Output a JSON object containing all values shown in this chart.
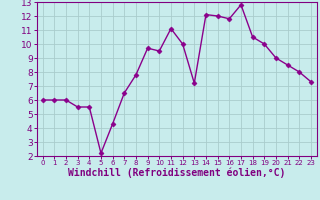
{
  "x": [
    0,
    1,
    2,
    3,
    4,
    5,
    6,
    7,
    8,
    9,
    10,
    11,
    12,
    13,
    14,
    15,
    16,
    17,
    18,
    19,
    20,
    21,
    22,
    23
  ],
  "y": [
    6,
    6,
    6,
    5.5,
    5.5,
    2.2,
    4.3,
    6.5,
    7.8,
    9.7,
    9.5,
    11.1,
    10.0,
    7.2,
    12.1,
    12.0,
    11.8,
    12.8,
    10.5,
    10.0,
    9.0,
    8.5,
    8.0,
    7.3
  ],
  "line_color": "#8B008B",
  "marker": "D",
  "marker_size": 2.5,
  "bg_color": "#c8ecec",
  "grid_color": "#aacccc",
  "xlabel": "Windchill (Refroidissement éolien,°C)",
  "xlim": [
    -0.5,
    23.5
  ],
  "ylim": [
    2,
    13
  ],
  "yticks": [
    2,
    3,
    4,
    5,
    6,
    7,
    8,
    9,
    10,
    11,
    12,
    13
  ],
  "xticks": [
    0,
    1,
    2,
    3,
    4,
    5,
    6,
    7,
    8,
    9,
    10,
    11,
    12,
    13,
    14,
    15,
    16,
    17,
    18,
    19,
    20,
    21,
    22,
    23
  ],
  "x_tick_fontsize": 5.0,
  "y_tick_fontsize": 6.5,
  "xlabel_fontsize": 7.0,
  "axis_color": "#800080",
  "spine_color": "#800080",
  "linewidth": 1.0
}
